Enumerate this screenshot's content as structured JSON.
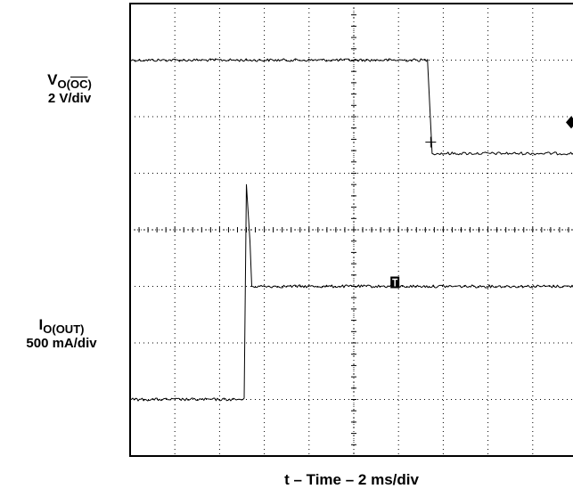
{
  "chart_data": {
    "type": "line",
    "title": "",
    "xlabel": "t – Time – 2 ms/div",
    "x_divisions": 10,
    "y_divisions": 8,
    "grid": true,
    "x_unit": "div",
    "channels": [
      {
        "name_main": "V",
        "name_sub_prefix": "O(",
        "name_sub_overline": "OC",
        "name_sub_suffix": ")",
        "scale": "2 V/div",
        "points": [
          [
            0,
            7.0
          ],
          [
            6.65,
            7.0
          ],
          [
            6.65,
            7.0
          ],
          [
            6.75,
            5.35
          ],
          [
            10.0,
            5.35
          ]
        ]
      },
      {
        "name_main": "I",
        "name_sub": "O(OUT)",
        "scale": "500 mA/div",
        "points": [
          [
            0,
            1.0
          ],
          [
            2.55,
            1.0
          ],
          [
            2.6,
            4.8
          ],
          [
            2.68,
            3.8
          ],
          [
            2.72,
            3.0
          ],
          [
            10.0,
            3.0
          ]
        ]
      }
    ]
  }
}
